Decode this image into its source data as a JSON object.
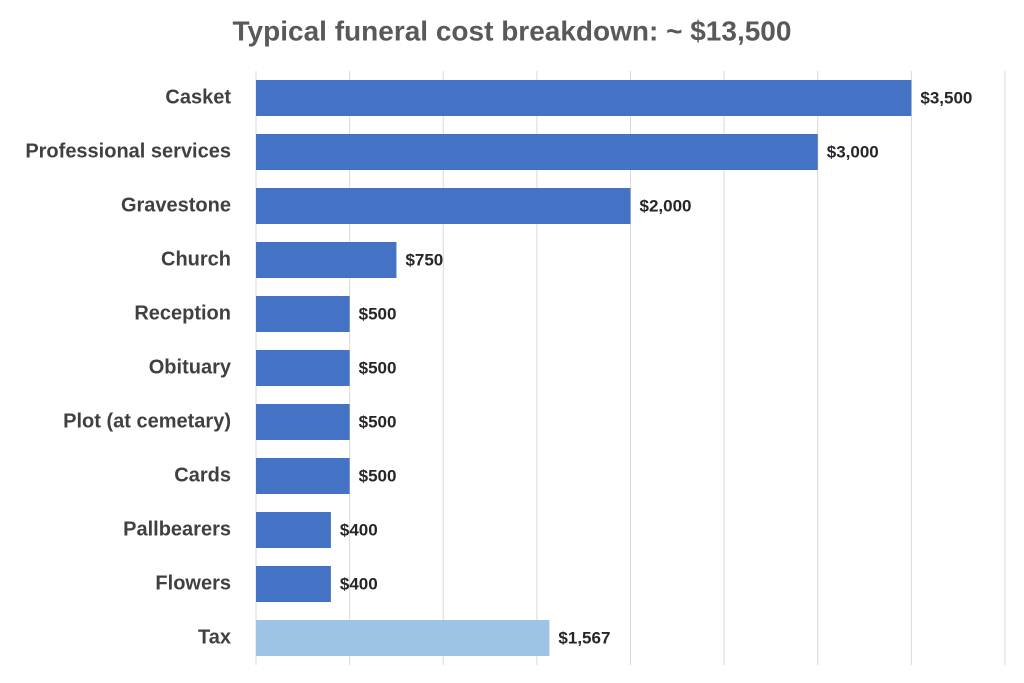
{
  "chart_data": {
    "type": "bar",
    "orientation": "horizontal",
    "title": "Typical funeral cost breakdown: ~ $13,500",
    "categories": [
      "Casket",
      "Professional services",
      "Gravestone",
      "Church",
      "Reception",
      "Obituary",
      "Plot (at cemetary)",
      "Cards",
      "Pallbearers",
      "Flowers",
      "Tax"
    ],
    "values": [
      3500,
      3000,
      2000,
      750,
      500,
      500,
      500,
      500,
      400,
      400,
      1567
    ],
    "value_labels": [
      "$3,500",
      "$3,000",
      "$2,000",
      "$750",
      "$500",
      "$500",
      "$500",
      "$500",
      "$400",
      "$400",
      "$1,567"
    ],
    "colors": [
      "#4472c4",
      "#4472c4",
      "#4472c4",
      "#4472c4",
      "#4472c4",
      "#4472c4",
      "#4472c4",
      "#4472c4",
      "#4472c4",
      "#4472c4",
      "#9dc3e6"
    ],
    "xlim": [
      0,
      4000
    ],
    "xticks": [
      0,
      500,
      1000,
      1500,
      2000,
      2500,
      3000,
      3500,
      4000
    ],
    "grid": true
  }
}
